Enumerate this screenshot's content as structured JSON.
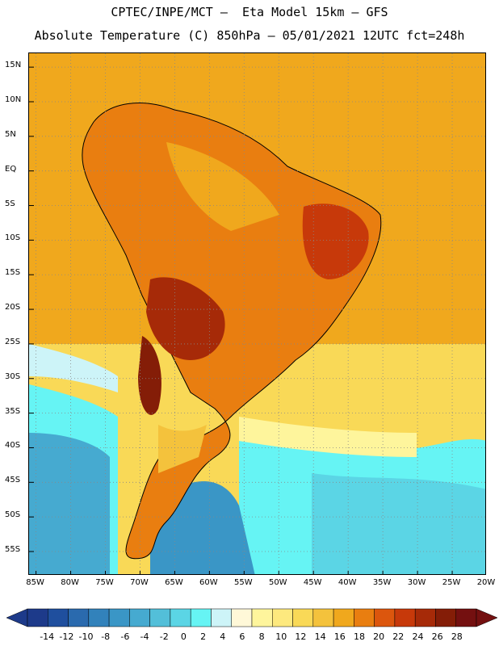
{
  "header": {
    "title_line1": "CPTEC/INPE/MCT –  Eta Model 15km – GFS",
    "title_line2": "Absolute Temperature (C) 850hPa – 05/01/2021 12UTC fct=248h"
  },
  "map": {
    "lat_labels": [
      "15N",
      "10N",
      "5N",
      "EQ",
      "5S",
      "10S",
      "15S",
      "20S",
      "25S",
      "30S",
      "35S",
      "40S",
      "45S",
      "50S",
      "55S"
    ],
    "lon_labels": [
      "85W",
      "80W",
      "75W",
      "70W",
      "65W",
      "60W",
      "55W",
      "50W",
      "45W",
      "40W",
      "35W",
      "30W",
      "25W",
      "20W"
    ],
    "lat_range": [
      17,
      -58.5
    ],
    "lon_range": [
      -86,
      -20
    ],
    "grid": "dotted"
  },
  "colorbar": {
    "labels": [
      "-14",
      "-12",
      "-10",
      "-8",
      "-6",
      "-4",
      "-2",
      "0",
      "2",
      "4",
      "6",
      "8",
      "10",
      "12",
      "14",
      "16",
      "18",
      "20",
      "22",
      "24",
      "26",
      "28"
    ],
    "colors": [
      "#1d3a8a",
      "#1f4f9e",
      "#2a6aae",
      "#3282bb",
      "#3a96c6",
      "#46aad0",
      "#53bfd9",
      "#5bd5e5",
      "#66f4f4",
      "#cdf4f8",
      "#fff8d8",
      "#fef59c",
      "#fde97e",
      "#f9d957",
      "#f4c23c",
      "#f0a81d",
      "#e97e10",
      "#dc560d",
      "#c7390a",
      "#a62a08",
      "#841d07",
      "#741010"
    ]
  }
}
